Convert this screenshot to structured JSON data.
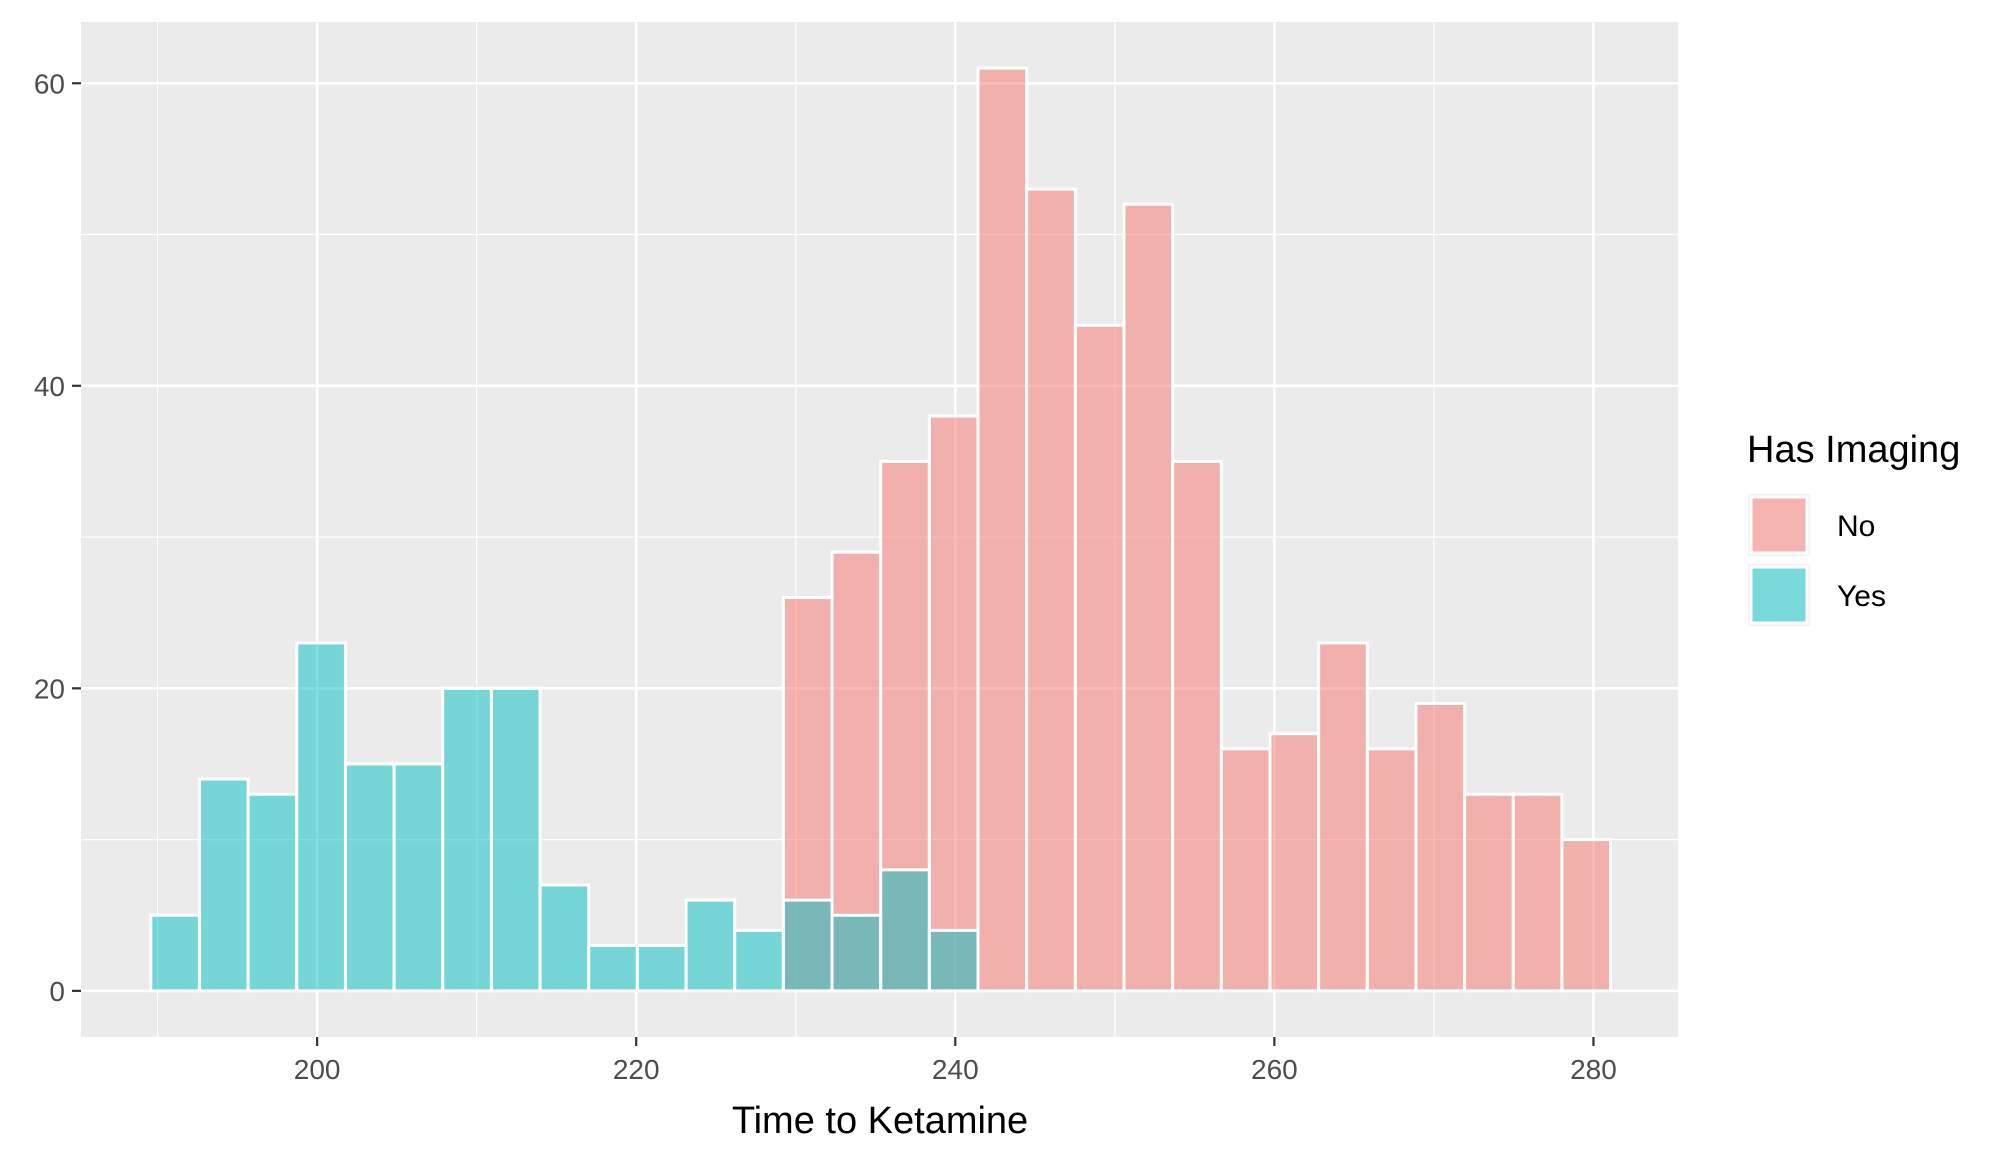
{
  "chart_data": {
    "type": "bar",
    "subtype": "overlapping-histogram",
    "title": "",
    "xlabel": "Time to Ketamine",
    "ylabel": "",
    "xlim": [
      185.2,
      285.3
    ],
    "ylim": [
      -3.05,
      64.05
    ],
    "x_ticks": [
      200,
      220,
      240,
      260,
      280
    ],
    "y_ticks": [
      0,
      20,
      40,
      60
    ],
    "bin_width": 3.05,
    "grid": true,
    "legend_position": "right",
    "legend_title": "Has Imaging",
    "series": [
      {
        "name": "No",
        "color": "#F8766D",
        "bins": [
          {
            "x": 230.75,
            "count": 26
          },
          {
            "x": 233.8,
            "count": 29
          },
          {
            "x": 236.85,
            "count": 35
          },
          {
            "x": 239.9,
            "count": 38
          },
          {
            "x": 242.95,
            "count": 61
          },
          {
            "x": 246.0,
            "count": 53
          },
          {
            "x": 249.05,
            "count": 44
          },
          {
            "x": 252.1,
            "count": 52
          },
          {
            "x": 255.15,
            "count": 35
          },
          {
            "x": 258.2,
            "count": 16
          },
          {
            "x": 261.25,
            "count": 17
          },
          {
            "x": 264.3,
            "count": 23
          },
          {
            "x": 267.35,
            "count": 16
          },
          {
            "x": 270.4,
            "count": 19
          },
          {
            "x": 273.45,
            "count": 13
          },
          {
            "x": 276.5,
            "count": 13
          },
          {
            "x": 279.55,
            "count": 10
          }
        ]
      },
      {
        "name": "Yes",
        "color": "#00BFC4",
        "bins": [
          {
            "x": 191.1,
            "count": 5
          },
          {
            "x": 194.15,
            "count": 14
          },
          {
            "x": 197.2,
            "count": 13
          },
          {
            "x": 200.25,
            "count": 23
          },
          {
            "x": 203.3,
            "count": 15
          },
          {
            "x": 206.35,
            "count": 15
          },
          {
            "x": 209.4,
            "count": 20
          },
          {
            "x": 212.45,
            "count": 20
          },
          {
            "x": 215.5,
            "count": 7
          },
          {
            "x": 218.55,
            "count": 3
          },
          {
            "x": 221.6,
            "count": 3
          },
          {
            "x": 224.65,
            "count": 6
          },
          {
            "x": 227.7,
            "count": 4
          },
          {
            "x": 230.75,
            "count": 6
          },
          {
            "x": 233.8,
            "count": 5
          },
          {
            "x": 236.85,
            "count": 8
          },
          {
            "x": 239.9,
            "count": 4
          }
        ]
      }
    ]
  }
}
